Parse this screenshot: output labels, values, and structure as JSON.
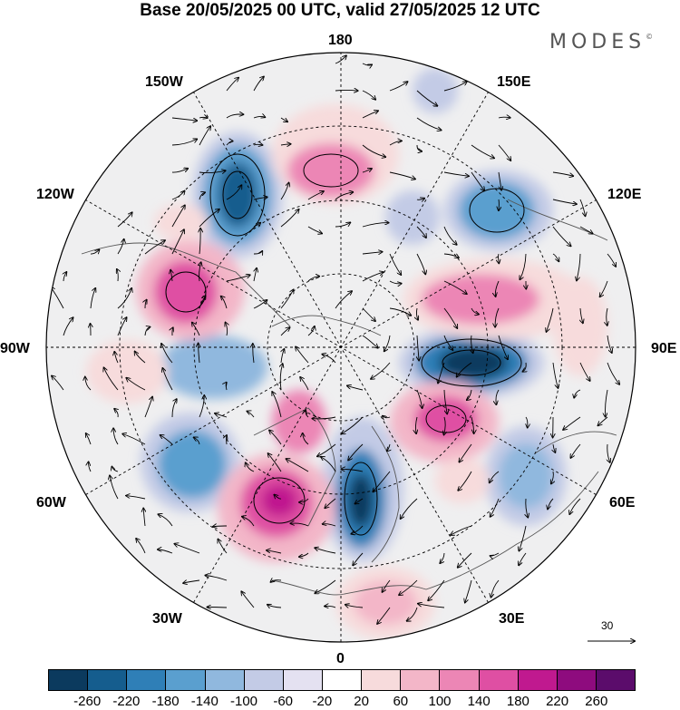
{
  "title": "Base 20/05/2025 00 UTC, valid 27/05/2025 12 UTC",
  "brand": "MODES",
  "brand_mark": "©",
  "longitude_labels": {
    "top": "180",
    "bottom": "0",
    "left": "90W",
    "right": "90E",
    "upper_left_1": "150W",
    "upper_left_2": "120W",
    "upper_right_1": "150E",
    "upper_right_2": "120E",
    "lower_left_1": "60W",
    "lower_left_2": "30W",
    "lower_right_1": "60E",
    "lower_right_2": "30E"
  },
  "vector_scale_label": "30",
  "colorbar": {
    "colors": [
      "#0b3a5e",
      "#155d8e",
      "#2f7fb7",
      "#5a9fcf",
      "#90b8de",
      "#c3cbe6",
      "#e4e1f1",
      "#ffffff",
      "#f7dbdc",
      "#f3b6c8",
      "#ec86b5",
      "#df4fa3",
      "#c0198f",
      "#8e0b7e",
      "#5b0c6b"
    ],
    "ticks": [
      "-260",
      "-220",
      "-180",
      "-140",
      "-100",
      "-60",
      "-20",
      "20",
      "60",
      "100",
      "140",
      "180",
      "220",
      "260"
    ]
  }
}
